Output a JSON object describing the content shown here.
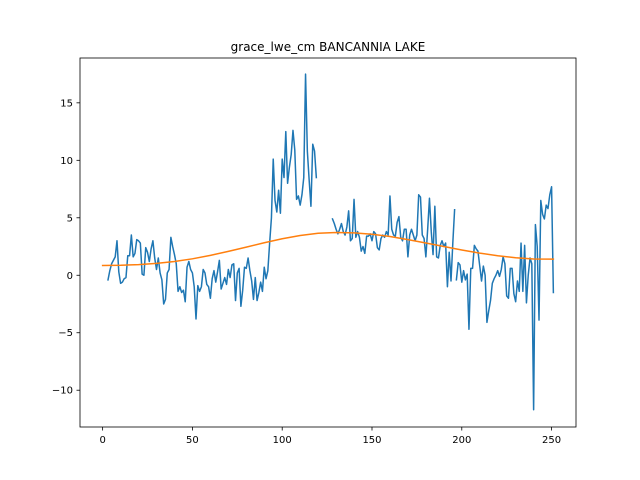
{
  "chart_data": {
    "type": "line",
    "title": "grace_lwe_cm BANCANNIA LAKE",
    "xlabel": "",
    "ylabel": "",
    "xlim": [
      -12.6,
      263.6
    ],
    "ylim": [
      -13.2,
      18.9
    ],
    "xticks": [
      0,
      50,
      100,
      150,
      200,
      250
    ],
    "yticks": [
      -10,
      -5,
      0,
      5,
      10,
      15
    ],
    "grid": false,
    "legend": "none",
    "series": [
      {
        "color": "#1f77b4",
        "points": [
          [
            3,
            -0.4
          ],
          [
            4,
            0.4
          ],
          [
            5,
            1.0
          ],
          [
            7,
            1.6
          ],
          [
            8,
            3.0
          ],
          [
            9,
            0.3
          ],
          [
            10,
            -0.7
          ],
          [
            11,
            -0.6
          ],
          [
            12,
            -0.3
          ],
          [
            13,
            -0.2
          ],
          [
            14,
            1.7
          ],
          [
            15,
            1.7
          ],
          [
            16,
            3.5
          ],
          [
            17,
            1.6
          ],
          [
            18,
            1.9
          ],
          [
            19,
            3.1
          ],
          [
            20,
            3.0
          ],
          [
            21,
            2.8
          ],
          [
            22,
            0.1
          ],
          [
            23,
            0.0
          ],
          [
            24,
            2.4
          ],
          [
            25,
            2.0
          ],
          [
            26,
            1.2
          ],
          [
            27,
            2.3
          ],
          [
            28,
            3.0
          ],
          [
            29,
            1.5
          ],
          [
            30,
            0.5
          ],
          [
            31,
            1.5
          ],
          [
            32,
            0.2
          ],
          [
            33,
            -0.4
          ],
          [
            34,
            -2.5
          ],
          [
            35,
            -2.1
          ],
          [
            36,
            0.2
          ],
          [
            37,
            0.5
          ],
          [
            38,
            3.3
          ],
          [
            39,
            2.5
          ],
          [
            40,
            1.8
          ],
          [
            41,
            1.0
          ],
          [
            42,
            -1.4
          ],
          [
            43,
            -1.0
          ],
          [
            44,
            -1.5
          ],
          [
            45,
            -1.3
          ],
          [
            46,
            -2.3
          ],
          [
            47,
            0.7
          ],
          [
            48,
            1.2
          ],
          [
            49,
            0.5
          ],
          [
            50,
            0.2
          ],
          [
            51,
            -1.0
          ],
          [
            52,
            -3.8
          ],
          [
            53,
            -0.9
          ],
          [
            54,
            -1.4
          ],
          [
            55,
            -1.0
          ],
          [
            56,
            0.5
          ],
          [
            57,
            0.2
          ],
          [
            58,
            -0.8
          ],
          [
            59,
            -1.0
          ],
          [
            60,
            -2.0
          ],
          [
            61,
            -0.3
          ],
          [
            62,
            0.4
          ],
          [
            63,
            -0.6
          ],
          [
            64,
            0.3
          ],
          [
            65,
            1.3
          ],
          [
            66,
            -1.2
          ],
          [
            67,
            -0.7
          ],
          [
            68,
            -0.2
          ],
          [
            69,
            -0.8
          ],
          [
            70,
            0.5
          ],
          [
            71,
            -0.2
          ],
          [
            72,
            0.9
          ],
          [
            73,
            1.0
          ],
          [
            74,
            -2.2
          ],
          [
            75,
            0.2
          ],
          [
            76,
            0.6
          ],
          [
            77,
            -2.7
          ],
          [
            78,
            -1.3
          ],
          [
            79,
            0.7
          ],
          [
            80,
            0.6
          ],
          [
            81,
            1.5
          ],
          [
            82,
            0.4
          ],
          [
            83,
            -0.5
          ],
          [
            84,
            -2.1
          ],
          [
            85,
            -0.2
          ],
          [
            86,
            -2.2
          ],
          [
            87,
            -1.5
          ],
          [
            88,
            -0.6
          ],
          [
            89,
            -1.4
          ],
          [
            90,
            0.7
          ],
          [
            91,
            -0.3
          ],
          [
            92,
            0.4
          ],
          [
            93,
            2.8
          ],
          [
            94,
            5.0
          ],
          [
            95,
            10.1
          ],
          [
            96,
            6.5
          ],
          [
            97,
            5.5
          ],
          [
            98,
            7.4
          ],
          [
            99,
            5.4
          ],
          [
            100,
            10.1
          ],
          [
            101,
            8.5
          ],
          [
            102,
            12.5
          ],
          [
            103,
            8.0
          ],
          [
            104,
            9.4
          ],
          [
            105,
            10.5
          ],
          [
            106,
            12.6
          ],
          [
            107,
            10.9
          ],
          [
            108,
            6.6
          ],
          [
            109,
            6.9
          ],
          [
            110,
            6.1
          ],
          [
            111,
            7.0
          ],
          [
            112,
            8.5
          ],
          [
            113,
            17.5
          ],
          [
            114,
            10.8
          ],
          [
            115,
            8.3
          ],
          [
            116,
            6.0
          ],
          [
            117,
            11.4
          ],
          [
            118,
            10.8
          ],
          [
            119,
            8.5
          ]
        ]
      },
      {
        "color": "#1f77b4",
        "points": [
          [
            128,
            4.9
          ],
          [
            129,
            4.5
          ],
          [
            130,
            4.0
          ],
          [
            131,
            3.6
          ],
          [
            132,
            4.0
          ],
          [
            133,
            4.5
          ],
          [
            134,
            3.8
          ],
          [
            135,
            3.5
          ],
          [
            136,
            4.2
          ],
          [
            137,
            5.6
          ],
          [
            138,
            3.0
          ],
          [
            139,
            3.2
          ],
          [
            140,
            6.6
          ],
          [
            141,
            3.3
          ],
          [
            142,
            3.8
          ],
          [
            143,
            3.3
          ],
          [
            144,
            2.1
          ],
          [
            145,
            2.5
          ],
          [
            146,
            1.9
          ],
          [
            147,
            3.4
          ],
          [
            148,
            3.4
          ],
          [
            149,
            3.6
          ],
          [
            150,
            3.0
          ],
          [
            151,
            3.8
          ],
          [
            152,
            3.6
          ],
          [
            153,
            2.4
          ],
          [
            154,
            2.2
          ],
          [
            155,
            3.2
          ],
          [
            156,
            3.5
          ],
          [
            157,
            3.3
          ],
          [
            158,
            3.8
          ],
          [
            159,
            3.5
          ],
          [
            160,
            6.9
          ],
          [
            161,
            4.0
          ],
          [
            162,
            3.5
          ],
          [
            163,
            3.4
          ],
          [
            164,
            4.6
          ],
          [
            165,
            5.1
          ],
          [
            166,
            3.3
          ],
          [
            167,
            3.0
          ],
          [
            168,
            4.0
          ],
          [
            169,
            4.0
          ],
          [
            170,
            1.6
          ],
          [
            171,
            3.5
          ],
          [
            172,
            4.0
          ],
          [
            173,
            3.5
          ],
          [
            174,
            3.0
          ],
          [
            175,
            3.5
          ],
          [
            176,
            7.0
          ],
          [
            177,
            6.8
          ],
          [
            178,
            3.5
          ],
          [
            179,
            3.2
          ],
          [
            180,
            1.6
          ],
          [
            181,
            4.0
          ],
          [
            182,
            6.7
          ],
          [
            183,
            3.8
          ],
          [
            184,
            1.8
          ],
          [
            185,
            6.0
          ],
          [
            186,
            1.6
          ],
          [
            187,
            1.5
          ],
          [
            188,
            2.6
          ],
          [
            189,
            3.0
          ],
          [
            190,
            2.5
          ],
          [
            191,
            2.8
          ],
          [
            192,
            -1.0
          ],
          [
            193,
            2.0
          ],
          [
            194,
            -0.5
          ],
          [
            195,
            2.8
          ],
          [
            196,
            5.7
          ]
        ]
      },
      {
        "color": "#1f77b4",
        "points": [
          [
            197,
            -0.4
          ],
          [
            198,
            1.1
          ],
          [
            199,
            0.9
          ],
          [
            200,
            -0.6
          ],
          [
            201,
            0.4
          ],
          [
            202,
            -0.4
          ],
          [
            203,
            0.1
          ],
          [
            204,
            -4.7
          ],
          [
            205,
            0.6
          ],
          [
            206,
            0.6
          ],
          [
            207,
            2.6
          ],
          [
            208,
            2.3
          ],
          [
            209,
            2.1
          ],
          [
            210,
            0.8
          ],
          [
            211,
            -0.5
          ],
          [
            212,
            0.8
          ],
          [
            213,
            0.0
          ],
          [
            214,
            -4.1
          ],
          [
            215,
            -3.1
          ],
          [
            216,
            -2.2
          ],
          [
            217,
            -0.7
          ],
          [
            218,
            -0.3
          ],
          [
            219,
            0.0
          ],
          [
            220,
            0.4
          ],
          [
            221,
            -0.1
          ],
          [
            222,
            0.5
          ],
          [
            223,
            1.6
          ],
          [
            224,
            1.0
          ],
          [
            225,
            -1.8
          ],
          [
            226,
            -2.0
          ],
          [
            227,
            0.6
          ],
          [
            228,
            0.6
          ],
          [
            229,
            -1.6
          ],
          [
            230,
            -2.3
          ],
          [
            231,
            -0.5
          ],
          [
            232,
            -1.4
          ],
          [
            233,
            2.8
          ],
          [
            234,
            -1.4
          ],
          [
            235,
            2.6
          ],
          [
            236,
            -2.4
          ],
          [
            237,
            0.0
          ],
          [
            238,
            1.5
          ],
          [
            239,
            1.0
          ],
          [
            240,
            -11.7
          ],
          [
            241,
            4.4
          ],
          [
            242,
            2.5
          ],
          [
            243,
            -3.9
          ],
          [
            244,
            6.5
          ],
          [
            245,
            5.3
          ],
          [
            246,
            4.9
          ],
          [
            247,
            6.1
          ],
          [
            248,
            5.8
          ],
          [
            249,
            7.0
          ],
          [
            250,
            7.7
          ],
          [
            251,
            -1.5
          ]
        ]
      },
      {
        "color": "#ff7f0e",
        "points": [
          [
            0,
            0.85
          ],
          [
            10,
            0.87
          ],
          [
            20,
            0.93
          ],
          [
            30,
            1.03
          ],
          [
            40,
            1.2
          ],
          [
            50,
            1.43
          ],
          [
            60,
            1.73
          ],
          [
            70,
            2.08
          ],
          [
            80,
            2.45
          ],
          [
            90,
            2.83
          ],
          [
            100,
            3.18
          ],
          [
            110,
            3.46
          ],
          [
            120,
            3.65
          ],
          [
            130,
            3.72
          ],
          [
            140,
            3.69
          ],
          [
            150,
            3.57
          ],
          [
            160,
            3.37
          ],
          [
            170,
            3.1
          ],
          [
            180,
            2.81
          ],
          [
            190,
            2.5
          ],
          [
            200,
            2.2
          ],
          [
            210,
            1.93
          ],
          [
            220,
            1.7
          ],
          [
            230,
            1.52
          ],
          [
            240,
            1.42
          ],
          [
            251,
            1.4
          ]
        ]
      }
    ]
  }
}
